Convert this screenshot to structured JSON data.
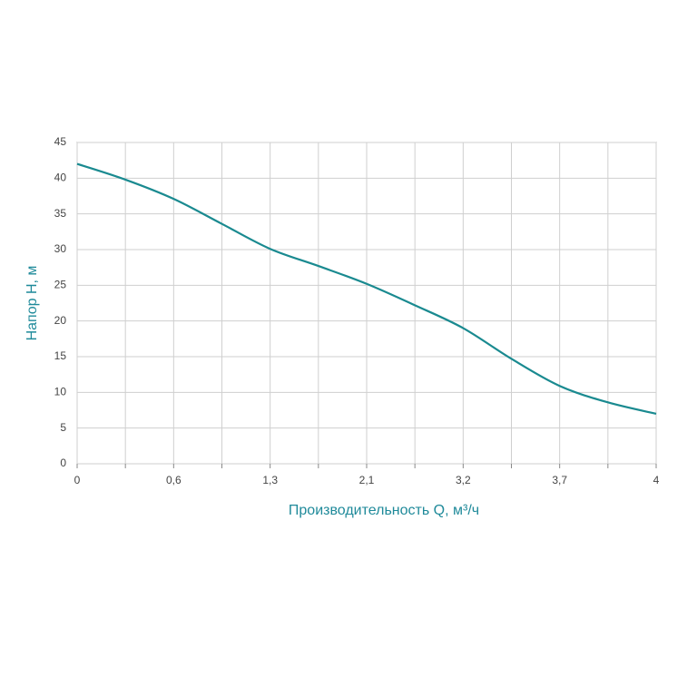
{
  "chart_data": {
    "type": "line",
    "x_label": "Производительность Q, м³/ч",
    "y_label": "Напор Н, м",
    "categories": [
      "0",
      null,
      "0,6",
      null,
      "1,3",
      null,
      "2,1",
      null,
      "3,2",
      null,
      "3,7",
      null,
      "4"
    ],
    "series": [
      {
        "color": "#1a8a90",
        "values": [
          42,
          39.8,
          37.1,
          33.6,
          30.1,
          27.7,
          25.2,
          22.2,
          19,
          14.7,
          10.9,
          8.6,
          7
        ]
      }
    ],
    "ylim": [
      0,
      45
    ],
    "yticks": [
      0,
      5,
      10,
      15,
      20,
      25,
      30,
      35,
      40,
      45
    ],
    "grid": true
  }
}
